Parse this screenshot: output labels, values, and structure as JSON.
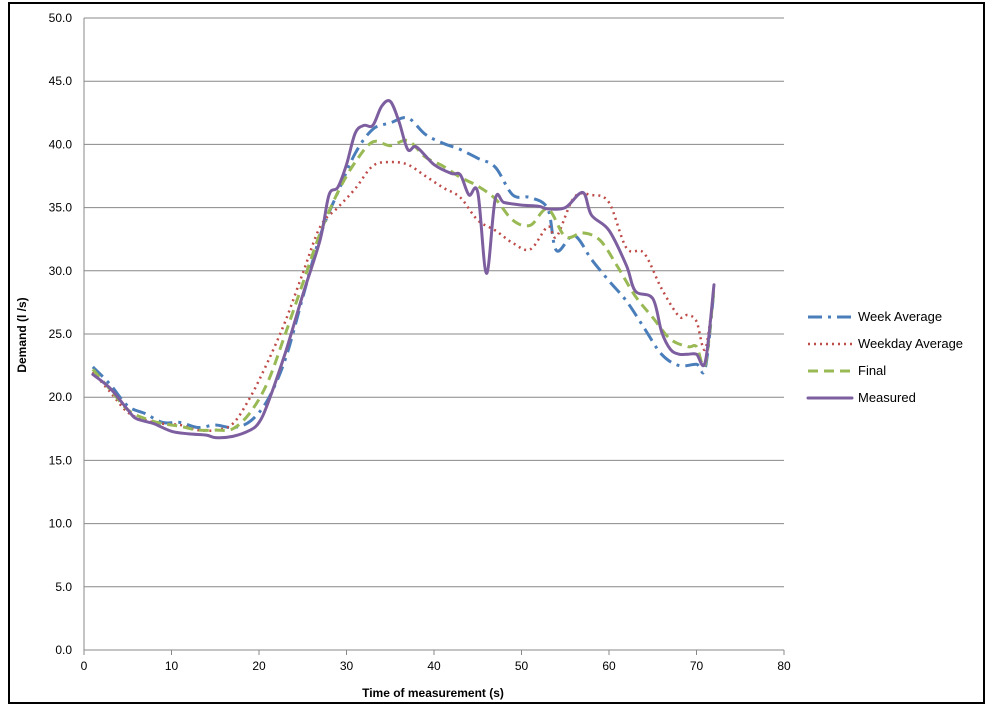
{
  "chart_data": {
    "type": "line",
    "title": "",
    "xlabel": "Time of measurement (s)",
    "ylabel": "Demand (l /s)",
    "xlim": [
      0,
      80
    ],
    "ylim": [
      0,
      50
    ],
    "x_ticks": [
      "0",
      "10",
      "20",
      "30",
      "40",
      "50",
      "60",
      "70",
      "80"
    ],
    "y_ticks": [
      "0.0",
      "5.0",
      "10.0",
      "15.0",
      "20.0",
      "25.0",
      "30.0",
      "35.0",
      "40.0",
      "45.0",
      "50.0"
    ],
    "grid": "horizontal",
    "legend_position": "right",
    "series": [
      {
        "name": "Week Average",
        "color": "#4a7ebb",
        "style": "dash-dot",
        "points": [
          [
            1,
            22.4
          ],
          [
            3,
            21.0
          ],
          [
            5,
            19.3
          ],
          [
            7,
            18.7
          ],
          [
            9,
            18.0
          ],
          [
            11,
            18.0
          ],
          [
            13,
            17.6
          ],
          [
            15,
            17.8
          ],
          [
            17,
            17.6
          ],
          [
            19,
            18.1
          ],
          [
            21,
            19.8
          ],
          [
            23,
            23.0
          ],
          [
            25,
            27.9
          ],
          [
            27,
            32.8
          ],
          [
            29,
            36.2
          ],
          [
            31,
            39.3
          ],
          [
            33,
            41.2
          ],
          [
            35,
            41.7
          ],
          [
            37,
            42.1
          ],
          [
            39,
            40.8
          ],
          [
            41,
            40.1
          ],
          [
            43,
            39.6
          ],
          [
            45,
            38.9
          ],
          [
            47,
            38.2
          ],
          [
            49,
            36.0
          ],
          [
            51,
            35.8
          ],
          [
            53,
            34.9
          ],
          [
            54,
            31.6
          ],
          [
            56,
            32.8
          ],
          [
            58,
            30.9
          ],
          [
            60,
            29.2
          ],
          [
            62,
            27.6
          ],
          [
            64,
            25.5
          ],
          [
            66,
            23.4
          ],
          [
            68,
            22.5
          ],
          [
            70,
            22.6
          ],
          [
            71,
            22.3
          ],
          [
            72,
            28.5
          ]
        ]
      },
      {
        "name": "Weekday Average",
        "color": "#be4b48",
        "style": "dotted",
        "points": [
          [
            1,
            22.0
          ],
          [
            3,
            20.4
          ],
          [
            5,
            18.8
          ],
          [
            7,
            18.2
          ],
          [
            9,
            17.9
          ],
          [
            11,
            17.8
          ],
          [
            13,
            17.4
          ],
          [
            15,
            17.4
          ],
          [
            17,
            17.9
          ],
          [
            19,
            20.0
          ],
          [
            21,
            22.8
          ],
          [
            23,
            26.0
          ],
          [
            25,
            29.8
          ],
          [
            27,
            33.5
          ],
          [
            29,
            35.0
          ],
          [
            31,
            36.5
          ],
          [
            33,
            38.3
          ],
          [
            35,
            38.6
          ],
          [
            37,
            38.4
          ],
          [
            39,
            37.5
          ],
          [
            41,
            36.6
          ],
          [
            43,
            35.8
          ],
          [
            45,
            34.0
          ],
          [
            47,
            33.2
          ],
          [
            49,
            32.2
          ],
          [
            51,
            31.7
          ],
          [
            53,
            33.5
          ],
          [
            54,
            32.7
          ],
          [
            56,
            35.8
          ],
          [
            58,
            36.0
          ],
          [
            60,
            35.4
          ],
          [
            62,
            31.8
          ],
          [
            64,
            31.4
          ],
          [
            66,
            28.6
          ],
          [
            68,
            26.4
          ],
          [
            69,
            26.5
          ],
          [
            70,
            26.0
          ],
          [
            71,
            23.8
          ],
          [
            72,
            28.6
          ]
        ]
      },
      {
        "name": "Final",
        "color": "#98b954",
        "style": "dashed",
        "points": [
          [
            1,
            22.2
          ],
          [
            3,
            20.6
          ],
          [
            5,
            19.0
          ],
          [
            7,
            18.3
          ],
          [
            9,
            17.9
          ],
          [
            11,
            17.7
          ],
          [
            13,
            17.4
          ],
          [
            15,
            17.4
          ],
          [
            17,
            17.5
          ],
          [
            19,
            18.8
          ],
          [
            21,
            21.2
          ],
          [
            23,
            25.0
          ],
          [
            25,
            29.0
          ],
          [
            27,
            33.0
          ],
          [
            29,
            36.2
          ],
          [
            31,
            38.6
          ],
          [
            33,
            40.2
          ],
          [
            35,
            39.9
          ],
          [
            37,
            40.3
          ],
          [
            39,
            39.0
          ],
          [
            41,
            38.3
          ],
          [
            43,
            37.4
          ],
          [
            45,
            36.7
          ],
          [
            47,
            35.7
          ],
          [
            49,
            34.0
          ],
          [
            51,
            33.6
          ],
          [
            53,
            34.9
          ],
          [
            55,
            32.7
          ],
          [
            57,
            33.0
          ],
          [
            59,
            32.4
          ],
          [
            61,
            30.3
          ],
          [
            63,
            28.0
          ],
          [
            65,
            26.3
          ],
          [
            67,
            24.6
          ],
          [
            69,
            24.0
          ],
          [
            70,
            24.0
          ],
          [
            71,
            22.6
          ],
          [
            72,
            28.6
          ]
        ]
      },
      {
        "name": "Measured",
        "color": "#7d5fa0",
        "style": "solid",
        "points": [
          [
            1,
            21.8
          ],
          [
            3,
            20.7
          ],
          [
            5,
            19.0
          ],
          [
            6,
            18.3
          ],
          [
            8,
            17.9
          ],
          [
            10,
            17.3
          ],
          [
            12,
            17.1
          ],
          [
            14,
            17.0
          ],
          [
            15,
            16.8
          ],
          [
            17,
            16.9
          ],
          [
            19,
            17.4
          ],
          [
            20,
            18.0
          ],
          [
            21,
            19.5
          ],
          [
            23,
            23.5
          ],
          [
            25,
            28.1
          ],
          [
            27,
            32.5
          ],
          [
            28,
            36.0
          ],
          [
            29,
            36.6
          ],
          [
            30,
            38.4
          ],
          [
            31,
            40.9
          ],
          [
            32,
            41.5
          ],
          [
            33,
            41.5
          ],
          [
            34,
            43.0
          ],
          [
            35,
            43.4
          ],
          [
            36,
            41.8
          ],
          [
            37,
            39.6
          ],
          [
            38,
            39.8
          ],
          [
            40,
            38.4
          ],
          [
            42,
            37.7
          ],
          [
            43,
            37.6
          ],
          [
            44,
            36.0
          ],
          [
            45,
            36.2
          ],
          [
            46,
            29.8
          ],
          [
            47,
            35.7
          ],
          [
            48,
            35.4
          ],
          [
            50,
            35.2
          ],
          [
            52,
            35.1
          ],
          [
            53,
            34.9
          ],
          [
            55,
            35.0
          ],
          [
            57,
            36.2
          ],
          [
            58,
            34.4
          ],
          [
            60,
            33.2
          ],
          [
            62,
            30.4
          ],
          [
            63,
            28.4
          ],
          [
            65,
            27.8
          ],
          [
            66,
            25.2
          ],
          [
            67,
            23.8
          ],
          [
            68,
            23.4
          ],
          [
            69,
            23.4
          ],
          [
            70,
            23.4
          ],
          [
            71,
            22.8
          ],
          [
            72,
            28.9
          ]
        ]
      }
    ]
  }
}
